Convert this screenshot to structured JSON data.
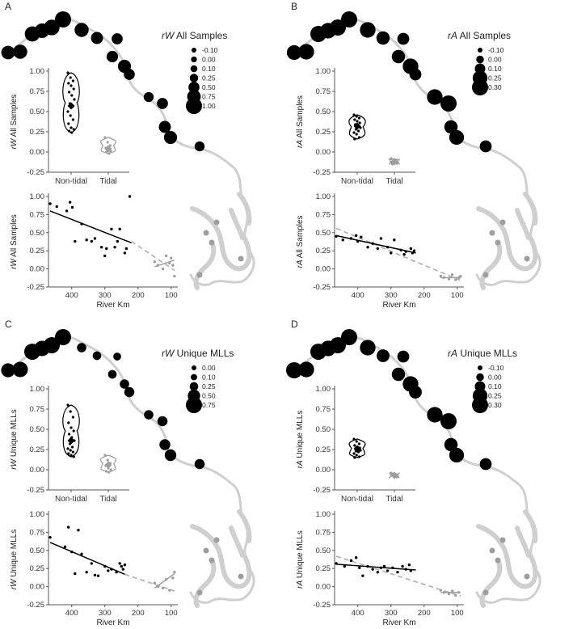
{
  "colors": {
    "nontidal": "#000000",
    "tidal": "#9e9e9e",
    "river": "#cfcfcf",
    "axis": "#555555"
  },
  "chart_data": [
    {
      "type": "scatter",
      "panel_label": "A",
      "legend": {
        "title_italic": "rW",
        "title_rest": " All Samples",
        "breaks": [
          "-0.10",
          "0.00",
          "0.10",
          "0.25",
          "0.50",
          "0.75",
          "1.00"
        ],
        "break_values": [
          -0.1,
          0.0,
          0.1,
          0.25,
          0.5,
          0.75,
          1.0
        ]
      },
      "violin": {
        "ylabel_italic": "rW",
        "ylabel_rest": " All Samples",
        "categories": [
          "Non-tidal",
          "Tidal"
        ],
        "ylim": [
          -0.25,
          1.0
        ],
        "yticks": [
          "1.00",
          "0.75",
          "0.50",
          "0.25",
          "0.00",
          "-0.25"
        ],
        "nontidal": [
          0.98,
          0.92,
          0.88,
          0.85,
          0.82,
          0.78,
          0.74,
          0.7,
          0.65,
          0.6,
          0.56,
          0.5,
          0.45,
          0.4,
          0.35,
          0.3,
          0.28,
          0.26,
          0.24
        ],
        "nontidal_mean": 0.57,
        "tidal": [
          0.18,
          0.12,
          0.08,
          0.05,
          0.03,
          0.01,
          0.0,
          -0.02
        ],
        "tidal_mean": 0.04
      },
      "regression": {
        "xlabel": "River Km",
        "ylabel_italic": "rW",
        "ylabel_rest": " All Samples",
        "xlim": [
          470,
          80
        ],
        "ylim": [
          -0.25,
          1.0
        ],
        "xticks": [
          "400",
          "300",
          "200",
          "100"
        ],
        "yticks": [
          "1.00",
          "0.75",
          "0.50",
          "0.25",
          "0.00",
          "-0.25"
        ],
        "nontidal_x": [
          465,
          445,
          415,
          405,
          398,
          390,
          370,
          355,
          340,
          330,
          310,
          300,
          295,
          280,
          270,
          262,
          255,
          240,
          235,
          225
        ],
        "nontidal_y": [
          0.9,
          0.86,
          0.8,
          0.92,
          0.85,
          0.38,
          0.62,
          0.4,
          0.38,
          0.42,
          0.3,
          0.18,
          0.28,
          0.55,
          0.3,
          0.38,
          0.55,
          0.22,
          0.28,
          1.0
        ],
        "nontidal_fit": [
          [
            465,
            0.8
          ],
          [
            220,
            0.36
          ]
        ],
        "tidal_x": [
          150,
          140,
          125,
          115,
          105,
          100,
          95,
          90
        ],
        "tidal_y": [
          0.1,
          0.05,
          0.0,
          0.18,
          0.08,
          0.15,
          0.05,
          -0.1
        ],
        "tidal_fit": [
          [
            90,
            0.12
          ],
          [
            150,
            0.03
          ]
        ],
        "trend_dashed": [
          [
            220,
            0.38
          ],
          [
            90,
            -0.02
          ]
        ]
      },
      "map_sites": {
        "values": [
          0.75,
          0.8,
          0.9,
          0.85,
          0.95,
          1.0,
          0.8,
          0.6,
          0.5,
          0.55,
          0.7,
          0.5,
          0.4,
          0.5,
          0.6,
          0.7,
          0.4,
          0.3,
          0.95
        ]
      }
    },
    {
      "type": "scatter",
      "panel_label": "B",
      "legend": {
        "title_italic": "rA",
        "title_rest": " All Samples",
        "breaks": [
          "-0.10",
          "0.00",
          "0.10",
          "0.25",
          "0.30"
        ],
        "break_values": [
          -0.1,
          0.0,
          0.1,
          0.25,
          0.3
        ]
      },
      "violin": {
        "ylabel_italic": "rA",
        "ylabel_rest": " All Samples",
        "categories": [
          "Non-tidal",
          "Tidal"
        ],
        "ylim": [
          -0.25,
          1.0
        ],
        "yticks": [
          "1.00",
          "0.75",
          "0.50",
          "0.25",
          "0.00",
          "-0.25"
        ],
        "nontidal": [
          0.46,
          0.44,
          0.42,
          0.4,
          0.38,
          0.36,
          0.34,
          0.32,
          0.3,
          0.28,
          0.26,
          0.24,
          0.22,
          0.18,
          0.16
        ],
        "nontidal_mean": 0.32,
        "tidal": [
          -0.08,
          -0.1,
          -0.11,
          -0.12,
          -0.13,
          -0.14,
          -0.15
        ],
        "tidal_mean": -0.12
      },
      "regression": {
        "xlabel": "River Km",
        "ylabel_italic": "rA",
        "ylabel_rest": " All Samples",
        "xlim": [
          470,
          80
        ],
        "ylim": [
          -0.25,
          1.0
        ],
        "xticks": [
          "400",
          "300",
          "200",
          "100"
        ],
        "yticks": [
          "1.00",
          "0.75",
          "0.50",
          "0.25",
          "0.00",
          "-0.25"
        ],
        "nontidal_x": [
          465,
          445,
          420,
          405,
          400,
          390,
          370,
          355,
          340,
          330,
          310,
          300,
          290,
          270,
          260,
          255,
          240,
          235,
          230
        ],
        "nontidal_y": [
          0.45,
          0.4,
          0.42,
          0.46,
          0.38,
          0.44,
          0.3,
          0.35,
          0.28,
          0.42,
          0.3,
          0.22,
          0.4,
          0.26,
          0.2,
          0.24,
          0.28,
          0.22,
          0.25
        ],
        "nontidal_fit": [
          [
            465,
            0.46
          ],
          [
            225,
            0.22
          ]
        ],
        "tidal_x": [
          150,
          140,
          125,
          115,
          105,
          95,
          90
        ],
        "tidal_y": [
          -0.1,
          -0.12,
          -0.14,
          -0.08,
          -0.15,
          -0.12,
          -0.1
        ],
        "tidal_fit": [
          [
            90,
            -0.12
          ],
          [
            150,
            -0.12
          ]
        ],
        "trend_dashed": [
          [
            465,
            0.56
          ],
          [
            90,
            -0.16
          ]
        ]
      },
      "map_sites": {
        "values": [
          0.25,
          0.28,
          0.3,
          0.28,
          0.3,
          0.3,
          0.28,
          0.2,
          0.15,
          0.2,
          0.28,
          0.15,
          0.28,
          0.3,
          0.2,
          0.25,
          0.15,
          0.1,
          0.1
        ]
      }
    },
    {
      "type": "scatter",
      "panel_label": "C",
      "legend": {
        "title_italic": "rW",
        "title_rest": " Unique MLLs",
        "breaks": [
          "0.00",
          "0.10",
          "0.25",
          "0.50",
          "0.75"
        ],
        "break_values": [
          0.0,
          0.1,
          0.25,
          0.5,
          0.75
        ]
      },
      "violin": {
        "ylabel_italic": "rW",
        "ylabel_rest": " Unique MLLs",
        "categories": [
          "Non-tidal",
          "Tidal"
        ],
        "ylim": [
          -0.25,
          1.0
        ],
        "yticks": [
          "1.00",
          "0.75",
          "0.50",
          "0.25",
          "0.00",
          "-0.25"
        ],
        "nontidal": [
          0.8,
          0.72,
          0.65,
          0.58,
          0.52,
          0.48,
          0.44,
          0.4,
          0.36,
          0.32,
          0.28,
          0.26,
          0.24,
          0.22,
          0.2,
          0.18,
          0.16
        ],
        "nontidal_mean": 0.36,
        "tidal": [
          0.18,
          0.12,
          0.08,
          0.05,
          0.02,
          0.0,
          -0.02,
          -0.03
        ],
        "tidal_mean": 0.06
      },
      "regression": {
        "xlabel": "River Km",
        "ylabel_italic": "rW",
        "ylabel_rest": " Unique MLLs",
        "xlim": [
          470,
          80
        ],
        "ylim": [
          -0.25,
          1.0
        ],
        "xticks": [
          "400",
          "300",
          "200",
          "100"
        ],
        "yticks": [
          "1.00",
          "0.75",
          "0.50",
          "0.25",
          "0.00",
          "-0.25"
        ],
        "nontidal_x": [
          465,
          420,
          410,
          400,
          390,
          380,
          370,
          355,
          340,
          330,
          320,
          300,
          290,
          280,
          265,
          255,
          250,
          245,
          240
        ],
        "nontidal_y": [
          0.68,
          0.55,
          0.82,
          0.48,
          0.18,
          0.78,
          0.45,
          0.2,
          0.32,
          0.16,
          0.15,
          0.28,
          0.22,
          0.24,
          0.2,
          0.32,
          0.28,
          0.24,
          0.3
        ],
        "nontidal_fit": [
          [
            465,
            0.61
          ],
          [
            240,
            0.17
          ]
        ],
        "tidal_x": [
          150,
          140,
          125,
          115,
          105,
          95,
          90
        ],
        "tidal_y": [
          0.05,
          0.0,
          -0.02,
          0.1,
          -0.05,
          0.12,
          0.2
        ],
        "tidal_fit": [
          [
            90,
            0.18
          ],
          [
            150,
            -0.02
          ]
        ],
        "trend_dashed": [
          [
            240,
            0.17
          ],
          [
            90,
            -0.06
          ]
        ]
      },
      "map_sites": {
        "values": [
          0.6,
          0.7,
          0.75,
          0.7,
          0.75,
          0.75,
          0.3,
          0.25,
          0.2,
          0.25,
          0.3,
          0.35,
          0.3,
          0.35,
          0.4,
          0.45,
          0.35,
          0.3,
          0.1
        ]
      }
    },
    {
      "type": "scatter",
      "panel_label": "D",
      "legend": {
        "title_italic": "rA",
        "title_rest": " Unique MLLs",
        "breaks": [
          "-0.10",
          "0.00",
          "0.10",
          "0.25",
          "0.30"
        ],
        "break_values": [
          -0.1,
          0.0,
          0.1,
          0.25,
          0.3
        ]
      },
      "violin": {
        "ylabel_italic": "rA",
        "ylabel_rest": " Unique MLLs",
        "categories": [
          "Non-tidal",
          "Tidal"
        ],
        "ylim": [
          -0.25,
          1.0
        ],
        "yticks": [
          "1.00",
          "0.75",
          "0.50",
          "0.25",
          "0.00",
          "-0.25"
        ],
        "nontidal": [
          0.38,
          0.35,
          0.32,
          0.3,
          0.28,
          0.27,
          0.26,
          0.25,
          0.24,
          0.23,
          0.22,
          0.2,
          0.18,
          0.16,
          0.15
        ],
        "nontidal_mean": 0.26,
        "tidal": [
          -0.04,
          -0.05,
          -0.06,
          -0.07,
          -0.08,
          -0.09
        ],
        "tidal_mean": -0.07
      },
      "regression": {
        "xlabel": "River Km",
        "ylabel_italic": "rA",
        "ylabel_rest": " Unique MLLs",
        "xlim": [
          470,
          80
        ],
        "ylim": [
          -0.25,
          1.0
        ],
        "xticks": [
          "400",
          "300",
          "200",
          "100"
        ],
        "yticks": [
          "1.00",
          "0.75",
          "0.50",
          "0.25",
          "0.00",
          "-0.25"
        ],
        "nontidal_x": [
          465,
          440,
          420,
          405,
          395,
          385,
          370,
          355,
          340,
          330,
          320,
          310,
          295,
          280,
          265,
          255,
          245,
          240
        ],
        "nontidal_y": [
          0.32,
          0.28,
          0.36,
          0.4,
          0.26,
          0.15,
          0.28,
          0.24,
          0.2,
          0.26,
          0.28,
          0.22,
          0.26,
          0.2,
          0.28,
          0.24,
          0.3,
          0.22
        ],
        "nontidal_fit": [
          [
            465,
            0.31
          ],
          [
            225,
            0.23
          ]
        ],
        "tidal_x": [
          150,
          140,
          125,
          115,
          105,
          95
        ],
        "tidal_y": [
          -0.05,
          -0.08,
          -0.1,
          -0.06,
          -0.12,
          -0.08
        ],
        "tidal_fit": [
          [
            95,
            -0.08
          ],
          [
            150,
            -0.08
          ]
        ],
        "trend_dashed": [
          [
            465,
            0.42
          ],
          [
            90,
            -0.13
          ]
        ]
      },
      "map_sites": {
        "values": [
          0.3,
          0.28,
          0.3,
          0.28,
          0.3,
          0.3,
          0.28,
          0.18,
          0.15,
          0.2,
          0.28,
          0.18,
          0.28,
          0.3,
          0.2,
          0.25,
          0.15,
          0.1,
          0.1
        ]
      }
    }
  ]
}
